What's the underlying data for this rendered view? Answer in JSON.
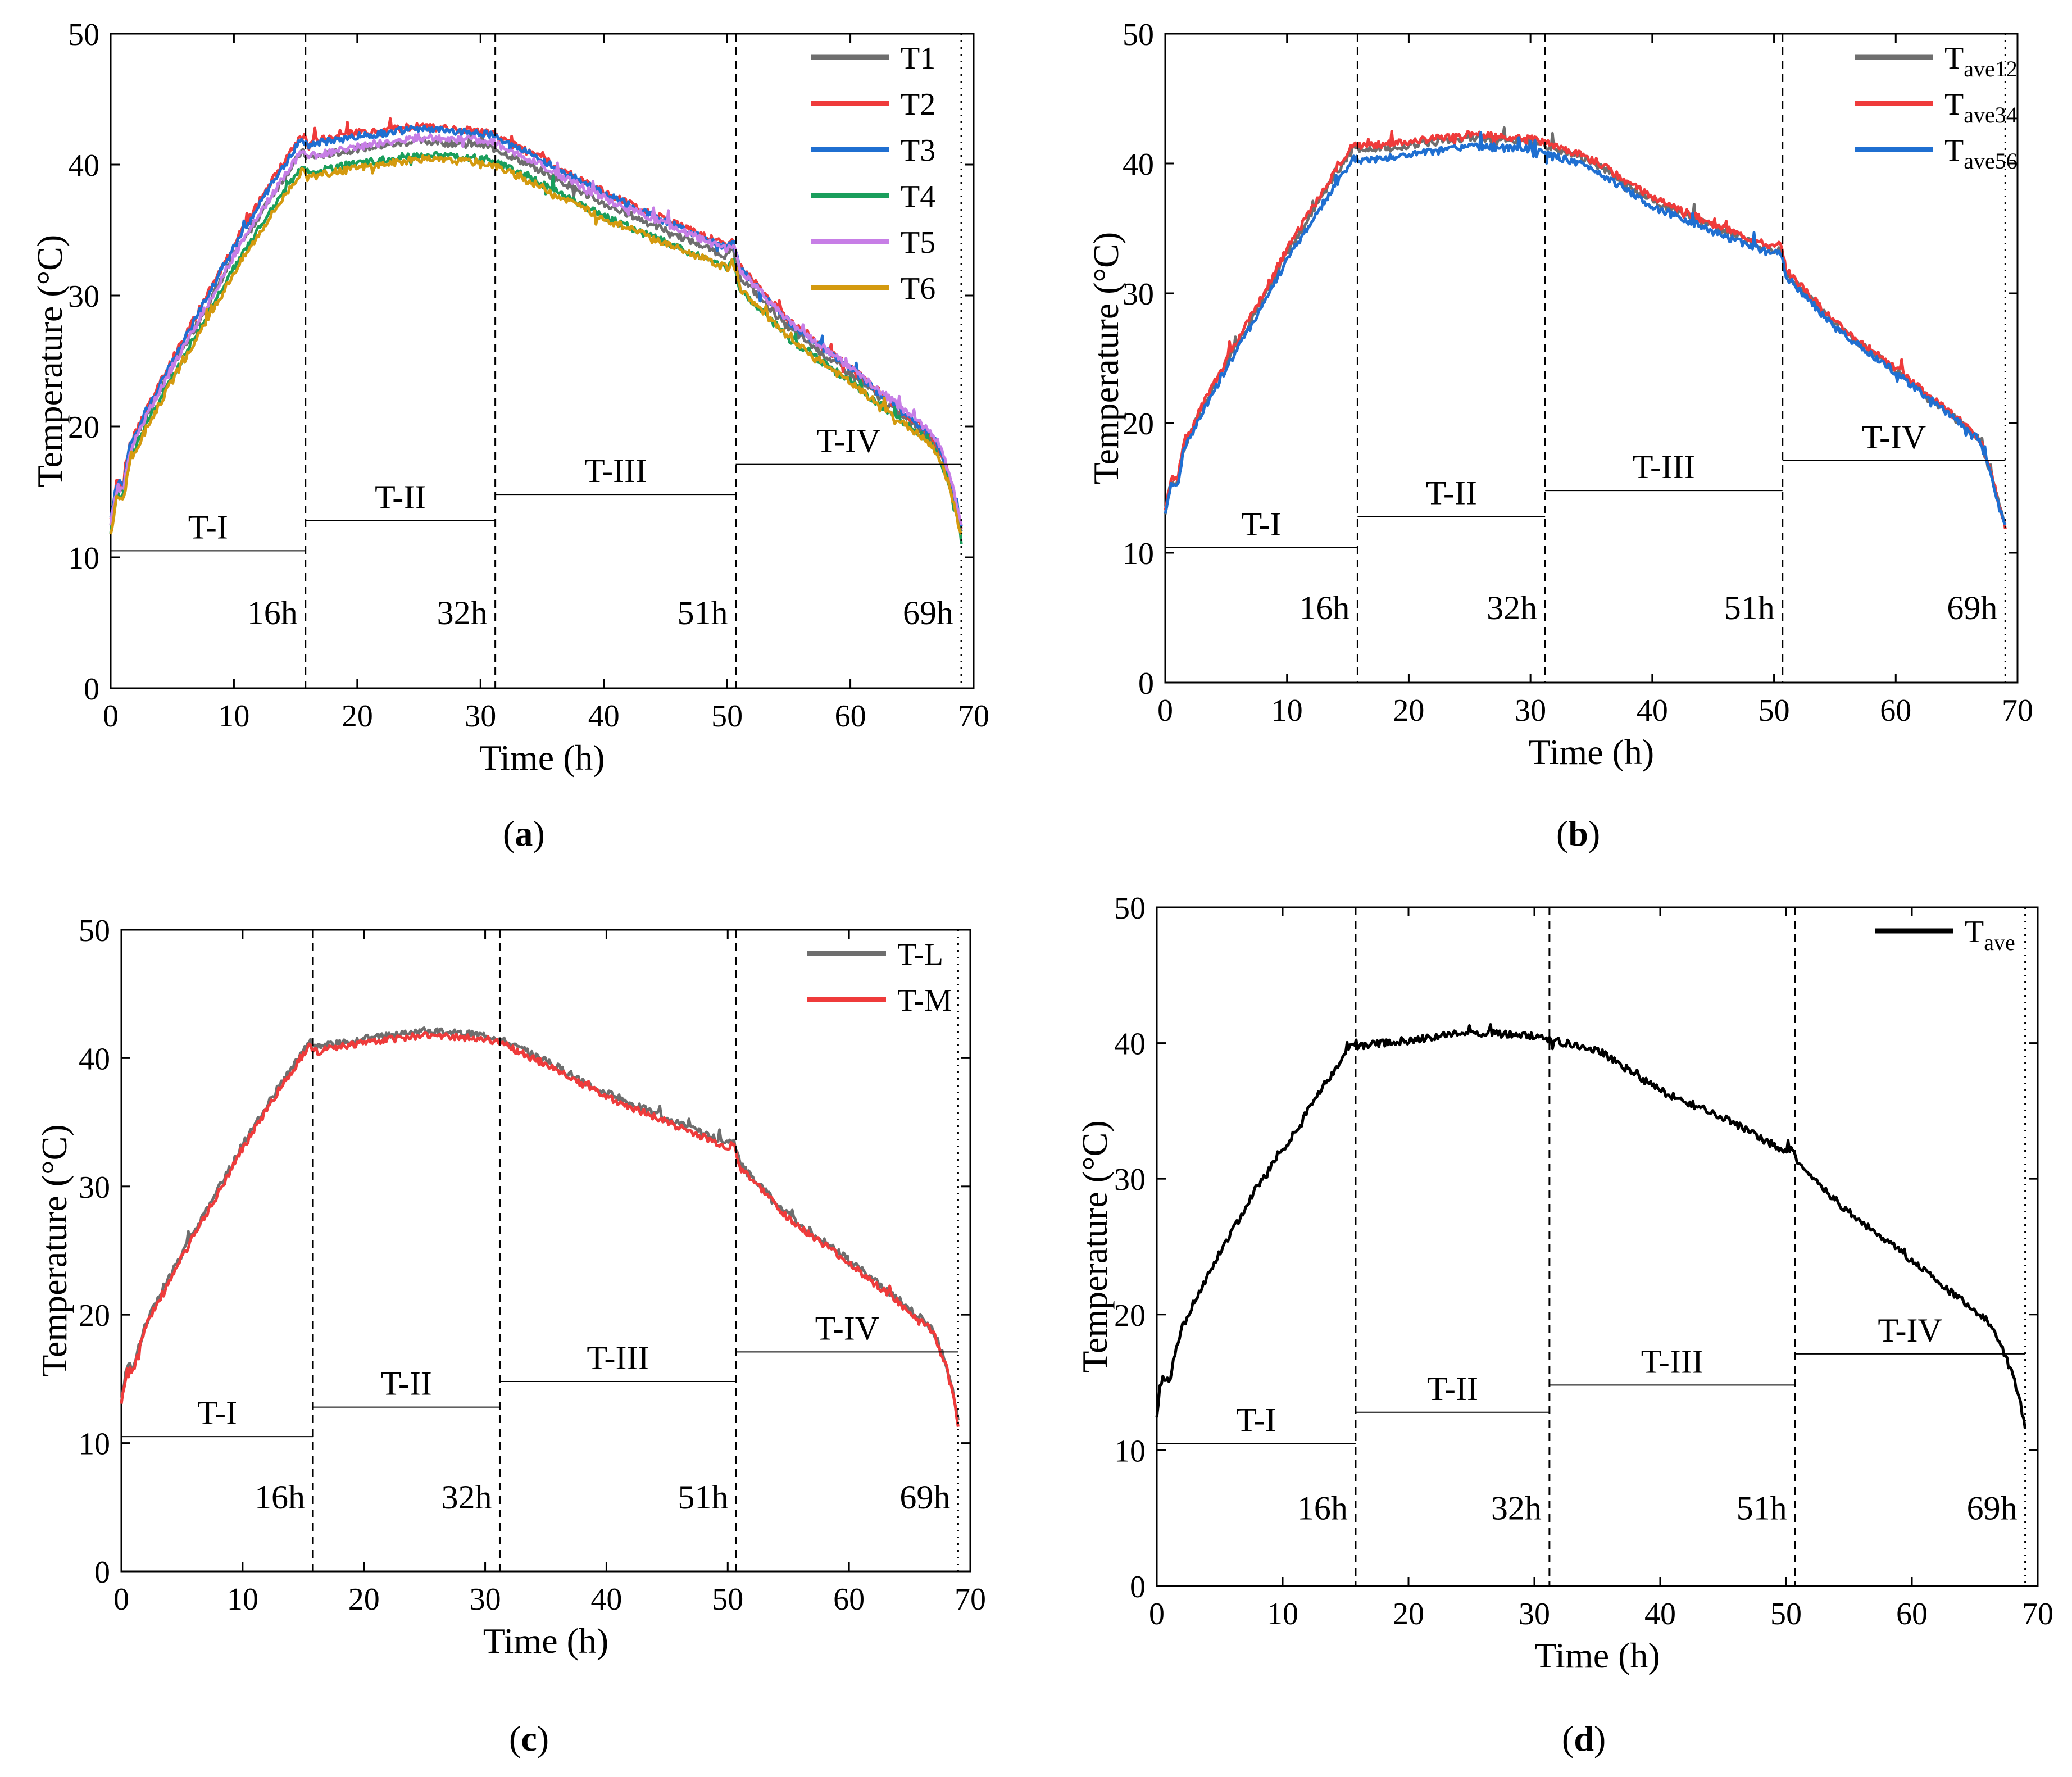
{
  "chart_data": [
    {
      "id": "a",
      "type": "line",
      "caption": "(a)",
      "caption_letter": "a",
      "xlabel": "Time (h)",
      "ylabel": "Temperature (°C)",
      "xlim": [
        0,
        70
      ],
      "ylim": [
        0,
        50
      ],
      "xticks": [
        0,
        10,
        20,
        30,
        40,
        50,
        60,
        70
      ],
      "yticks": [
        0,
        10,
        20,
        30,
        40,
        50
      ],
      "series": [
        {
          "name": "T1",
          "sub": "",
          "color": "#6e6e6e",
          "offsets": [
            0,
            0,
            0,
            0,
            0
          ]
        },
        {
          "name": "T2",
          "sub": "",
          "color": "#ef3b3b",
          "offsets": [
            0.3,
            1.3,
            1.0,
            0.8,
            0.2
          ]
        },
        {
          "name": "T3",
          "sub": "",
          "color": "#1f6fd1",
          "offsets": [
            0.3,
            1.0,
            0.9,
            0.6,
            0.2
          ]
        },
        {
          "name": "T4",
          "sub": "",
          "color": "#1a9e5c",
          "offsets": [
            -0.5,
            -1.1,
            -1.0,
            -0.9,
            -0.3
          ]
        },
        {
          "name": "T5",
          "sub": "",
          "color": "#c77ee6",
          "offsets": [
            0,
            0.1,
            0.4,
            0.5,
            0.5
          ]
        },
        {
          "name": "T6",
          "sub": "",
          "color": "#d49a0f",
          "offsets": [
            -0.8,
            -1.5,
            -1.3,
            -0.9,
            -0.4
          ]
        }
      ],
      "profile": {
        "t": [
          0,
          0.5,
          1,
          1.5,
          2,
          3,
          5,
          8,
          10,
          13,
          15.5,
          16,
          20,
          25,
          30,
          31,
          35,
          40,
          45,
          50,
          50.5,
          51,
          55,
          60,
          66,
          67,
          68,
          68.5,
          69
        ],
        "v": [
          12.5,
          15.5,
          15,
          18,
          19,
          21,
          24.5,
          29.5,
          33,
          37.5,
          41,
          40.5,
          41.2,
          41.8,
          41.5,
          41.3,
          39.5,
          37,
          35,
          33,
          33.5,
          31.5,
          27.5,
          24,
          19.5,
          18.5,
          16,
          14,
          12
        ]
      },
      "markers": [
        {
          "t": 15.8,
          "label": "16h"
        },
        {
          "t": 31.2,
          "label": "32h"
        },
        {
          "t": 50.7,
          "label": "51h"
        },
        {
          "t": 69,
          "label": "69h"
        }
      ],
      "phases": [
        {
          "label": "T-I",
          "x0": 0,
          "x1": 15.8,
          "y": 10.5
        },
        {
          "label": "T-II",
          "x0": 15.8,
          "x1": 31.2,
          "y": 12.8
        },
        {
          "label": "T-III",
          "x0": 31.2,
          "x1": 50.7,
          "y": 14.8
        },
        {
          "label": "T-IV",
          "x0": 50.7,
          "x1": 69,
          "y": 17.1
        }
      ]
    },
    {
      "id": "b",
      "type": "line",
      "caption": "(b)",
      "caption_letter": "b",
      "xlabel": "Time (h)",
      "ylabel": "Temperature (°C)",
      "xlim": [
        0,
        70
      ],
      "ylim": [
        0,
        50
      ],
      "xticks": [
        0,
        10,
        20,
        30,
        40,
        50,
        60,
        70
      ],
      "yticks": [
        0,
        10,
        20,
        30,
        40,
        50
      ],
      "series": [
        {
          "name": "T",
          "sub": "ave12",
          "color": "#6e6e6e",
          "offsets": [
            0,
            0.2,
            0.2,
            0.1,
            0
          ]
        },
        {
          "name": "T",
          "sub": "ave34",
          "color": "#ef3b3b",
          "offsets": [
            0.2,
            0.5,
            0.4,
            0.3,
            0.1
          ]
        },
        {
          "name": "T",
          "sub": "ave56",
          "color": "#1f6fd1",
          "offsets": [
            -0.2,
            -0.6,
            -0.4,
            -0.2,
            0
          ]
        }
      ],
      "profile": {
        "t": [
          0,
          0.5,
          1,
          1.5,
          2,
          3,
          5,
          8,
          10,
          13,
          15.5,
          16,
          20,
          25,
          30,
          31,
          35,
          40,
          45,
          50,
          50.5,
          51,
          55,
          60,
          66,
          67,
          68,
          68.5,
          69
        ],
        "v": [
          13,
          15.5,
          15.3,
          18,
          19,
          21,
          24.5,
          29.5,
          33,
          37.5,
          41,
          40.8,
          41.2,
          41.8,
          41.5,
          41.3,
          40,
          37,
          35,
          33.2,
          33.5,
          31.5,
          27.5,
          24,
          19.5,
          18.5,
          15.5,
          13.5,
          12
        ]
      },
      "markers": [
        {
          "t": 15.8,
          "label": "16h"
        },
        {
          "t": 31.2,
          "label": "32h"
        },
        {
          "t": 50.7,
          "label": "51h"
        },
        {
          "t": 69,
          "label": "69h"
        }
      ],
      "phases": [
        {
          "label": "T-I",
          "x0": 0,
          "x1": 15.8,
          "y": 10.4
        },
        {
          "label": "T-II",
          "x0": 15.8,
          "x1": 31.2,
          "y": 12.8
        },
        {
          "label": "T-III",
          "x0": 31.2,
          "x1": 50.7,
          "y": 14.8
        },
        {
          "label": "T-IV",
          "x0": 50.7,
          "x1": 69,
          "y": 17.1
        }
      ]
    },
    {
      "id": "c",
      "type": "line",
      "caption": "(c)",
      "caption_letter": "c",
      "xlabel": "Time (h)",
      "ylabel": "Temperature (°C)",
      "xlim": [
        0,
        70
      ],
      "ylim": [
        0,
        50
      ],
      "xticks": [
        0,
        10,
        20,
        30,
        40,
        50,
        60,
        70
      ],
      "yticks": [
        0,
        10,
        20,
        30,
        40,
        50
      ],
      "series": [
        {
          "name": "T-L",
          "sub": "",
          "color": "#6e6e6e",
          "offsets": [
            0.2,
            0.3,
            0.3,
            0.3,
            0.2
          ]
        },
        {
          "name": "T-M",
          "sub": "",
          "color": "#ef3b3b",
          "offsets": [
            0,
            0,
            0,
            0,
            0
          ]
        }
      ],
      "profile": {
        "t": [
          0,
          0.5,
          1,
          1.5,
          2,
          3,
          5,
          8,
          10,
          13,
          15.5,
          16,
          20,
          25,
          30,
          31,
          35,
          40,
          45,
          50,
          50.5,
          51,
          55,
          60,
          66,
          67,
          68,
          68.5,
          69
        ],
        "v": [
          13,
          16,
          15.5,
          17.5,
          19,
          21,
          24.5,
          29.5,
          33,
          37.5,
          41,
          40.5,
          41.2,
          41.8,
          41.5,
          41.3,
          39.5,
          37,
          35,
          33,
          33.2,
          31.5,
          27.5,
          24,
          19.5,
          18.5,
          16,
          14,
          11.5
        ]
      },
      "markers": [
        {
          "t": 15.8,
          "label": "16h"
        },
        {
          "t": 31.2,
          "label": "32h"
        },
        {
          "t": 50.7,
          "label": "51h"
        },
        {
          "t": 69,
          "label": "69h"
        }
      ],
      "phases": [
        {
          "label": "T-I",
          "x0": 0,
          "x1": 15.8,
          "y": 10.5
        },
        {
          "label": "T-II",
          "x0": 15.8,
          "x1": 31.2,
          "y": 12.8
        },
        {
          "label": "T-III",
          "x0": 31.2,
          "x1": 50.7,
          "y": 14.8
        },
        {
          "label": "T-IV",
          "x0": 50.7,
          "x1": 69,
          "y": 17.1
        }
      ]
    },
    {
      "id": "d",
      "type": "line",
      "caption": "(d)",
      "caption_letter": "d",
      "xlabel": "Time (h)",
      "ylabel": "Temperature (°C)",
      "xlim": [
        0,
        70
      ],
      "ylim": [
        0,
        50
      ],
      "xticks": [
        0,
        10,
        20,
        30,
        40,
        50,
        60,
        70
      ],
      "yticks": [
        0,
        10,
        20,
        30,
        40,
        50
      ],
      "series": [
        {
          "name": "T",
          "sub": "ave",
          "color": "#000000",
          "offsets": [
            0,
            0,
            0,
            0,
            0
          ]
        }
      ],
      "profile": {
        "t": [
          0,
          0.5,
          1,
          1.5,
          2,
          3,
          5,
          8,
          10,
          13,
          15.5,
          16,
          20,
          25,
          30,
          31,
          35,
          40,
          45,
          50,
          50.5,
          51,
          55,
          60,
          66,
          67,
          68,
          68.5,
          69
        ],
        "v": [
          12.5,
          15.5,
          15,
          17.5,
          19,
          21,
          24.5,
          29.5,
          32,
          36.5,
          40,
          39.8,
          40.2,
          40.8,
          40.5,
          40.3,
          39.5,
          36.5,
          34.5,
          32,
          32.2,
          31,
          27.5,
          24,
          19.5,
          18,
          15.5,
          14,
          11.5
        ]
      },
      "markers": [
        {
          "t": 15.8,
          "label": "16h"
        },
        {
          "t": 31.2,
          "label": "32h"
        },
        {
          "t": 50.7,
          "label": "51h"
        },
        {
          "t": 69,
          "label": "69h"
        }
      ],
      "phases": [
        {
          "label": "T-I",
          "x0": 0,
          "x1": 15.8,
          "y": 10.5
        },
        {
          "label": "T-II",
          "x0": 15.8,
          "x1": 31.2,
          "y": 12.8
        },
        {
          "label": "T-III",
          "x0": 31.2,
          "x1": 50.7,
          "y": 14.8
        },
        {
          "label": "T-IV",
          "x0": 50.7,
          "x1": 69,
          "y": 17.1
        }
      ]
    }
  ]
}
